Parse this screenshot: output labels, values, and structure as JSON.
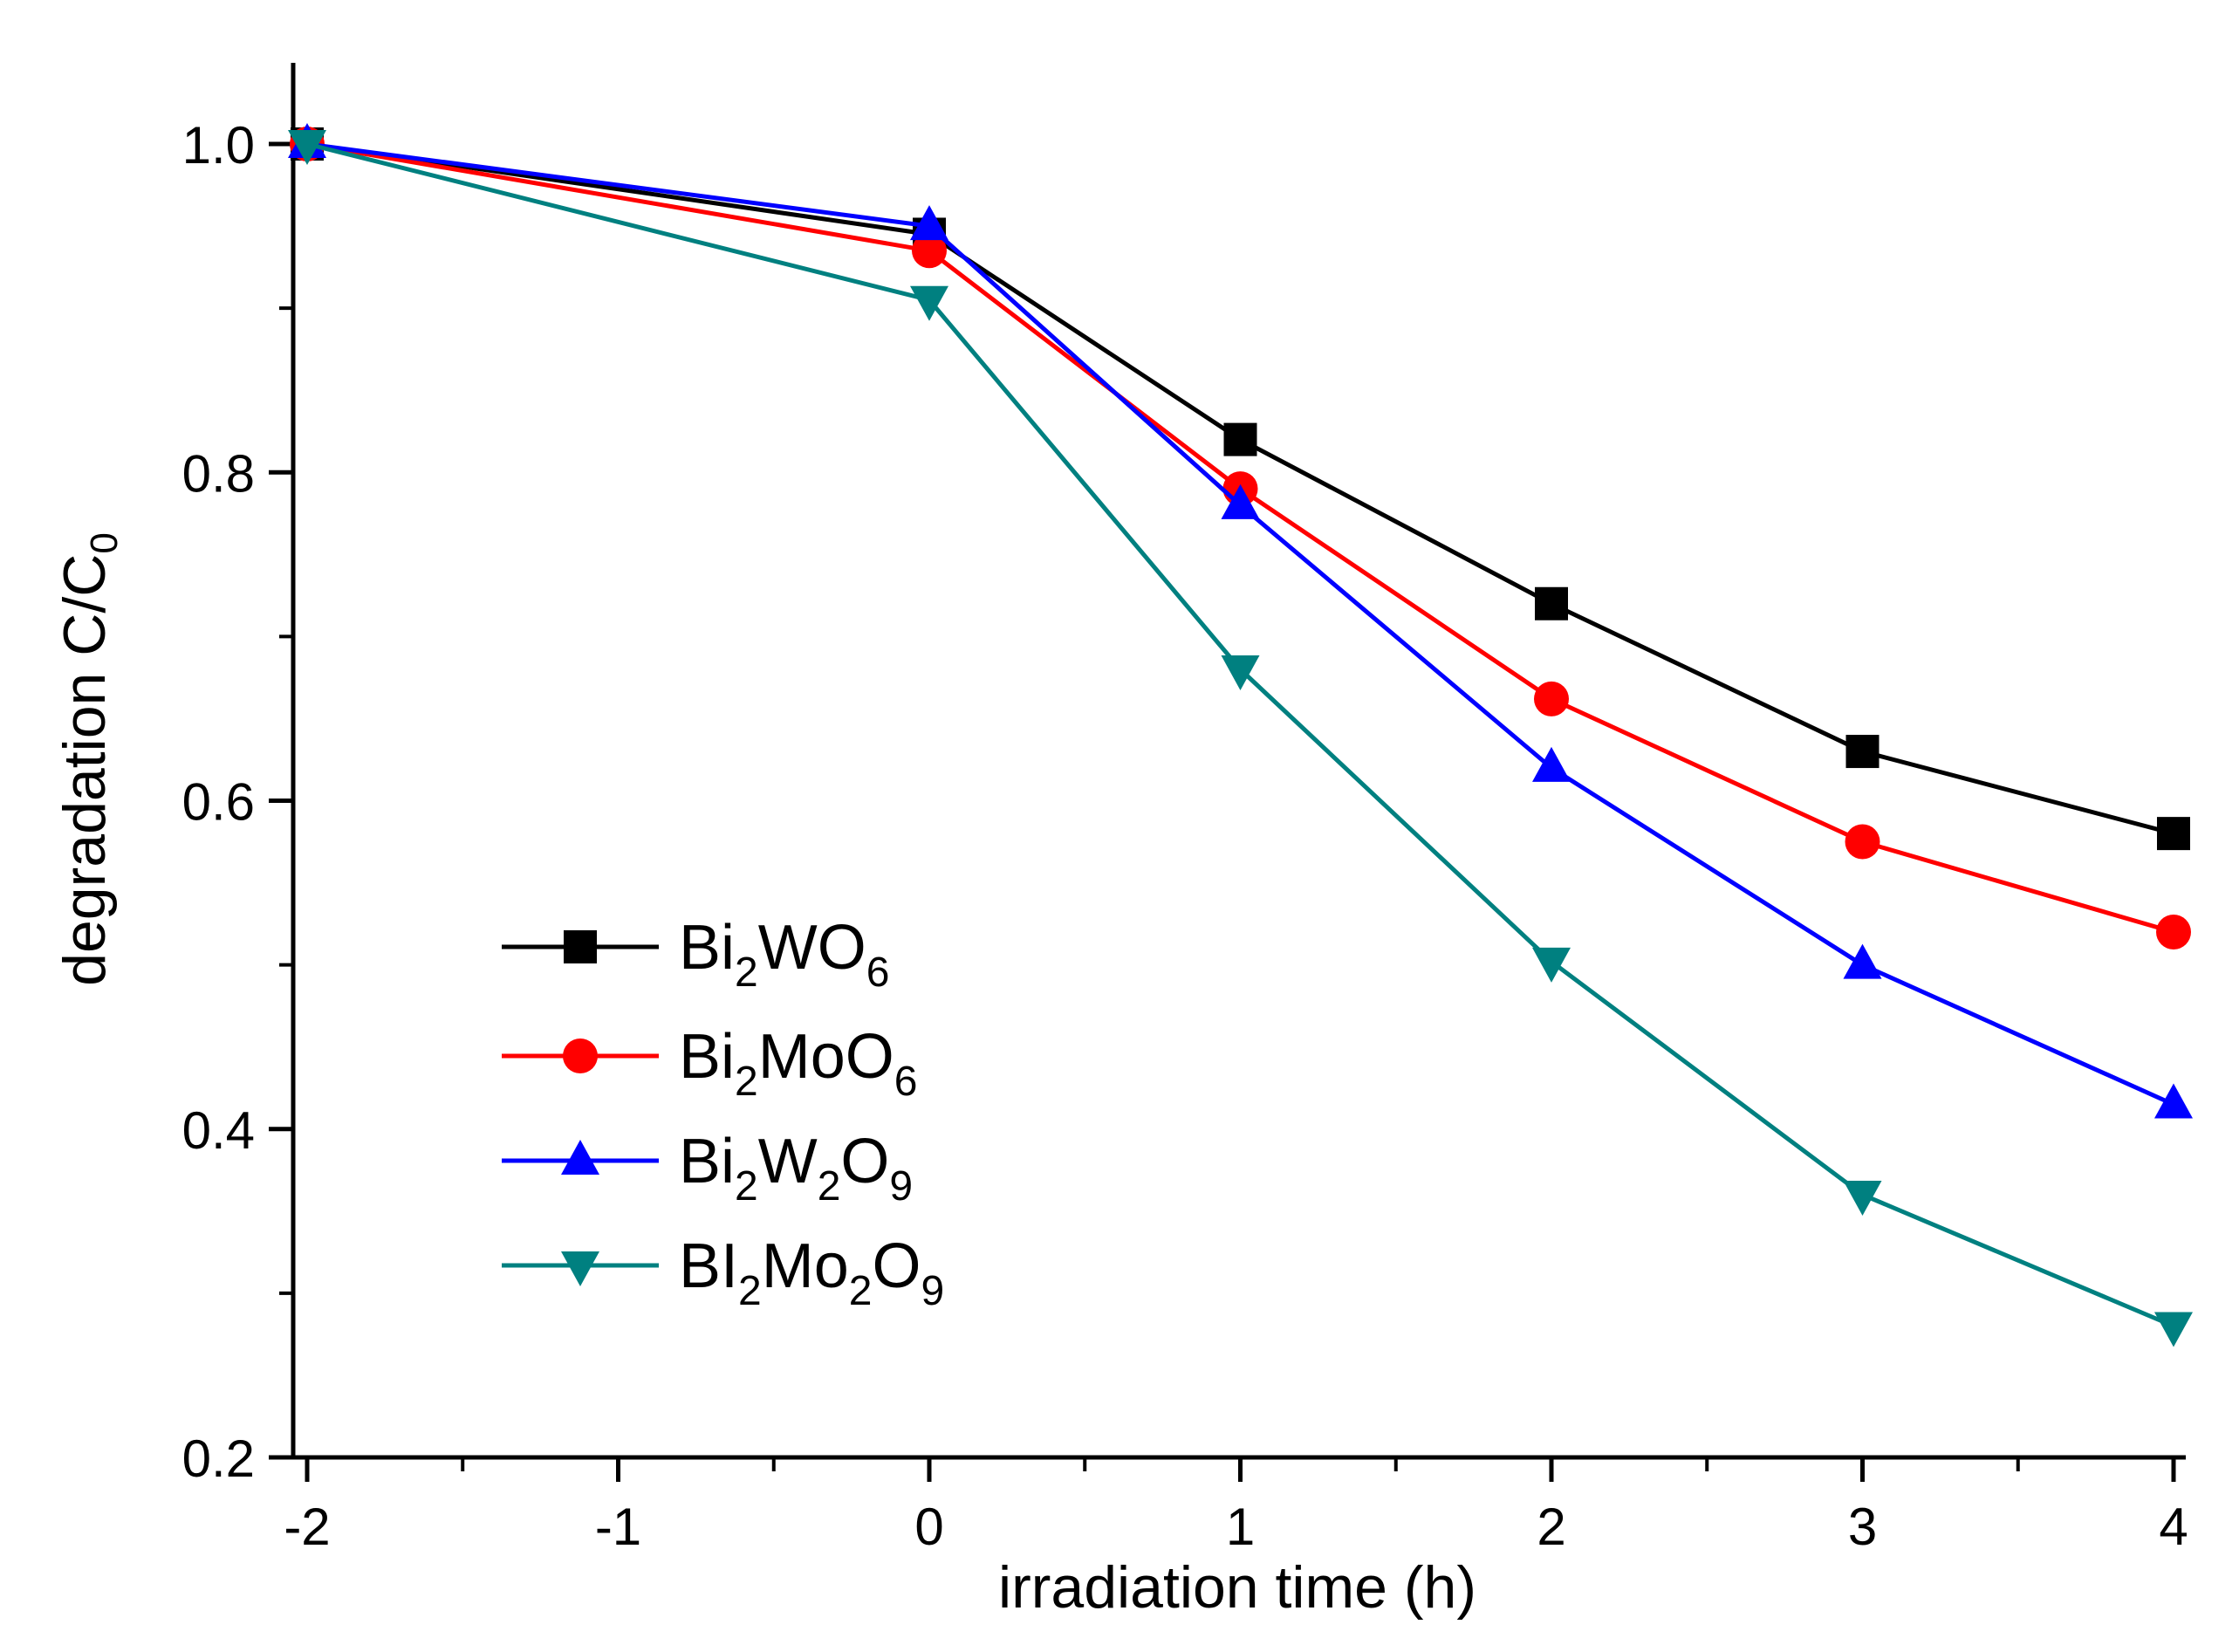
{
  "chart_data": {
    "type": "line",
    "xlabel": "irradiation time (h)",
    "ylabel": {
      "text": "degradation C/C",
      "subscript": "0"
    },
    "xlim": [
      -2,
      4
    ],
    "ylim": [
      0.2,
      1.05
    ],
    "x_ticks": [
      -2,
      -1,
      0,
      1,
      2,
      3,
      4
    ],
    "x_tick_labels": [
      "-2",
      "-1",
      "0",
      "1",
      "2",
      "3",
      "4"
    ],
    "y_ticks": [
      0.2,
      0.4,
      0.6,
      0.8,
      1.0
    ],
    "y_tick_labels": [
      "0.2",
      "0.4",
      "0.6",
      "0.8",
      "1.0"
    ],
    "grid": false,
    "legend_position": "lower-left",
    "x": [
      -2,
      0,
      1,
      2,
      3,
      4
    ],
    "series": [
      {
        "name": "Bi2WO6",
        "label_parts": [
          [
            "Bi",
            "n"
          ],
          [
            "2",
            "sub"
          ],
          [
            "WO",
            "n"
          ],
          [
            "6",
            "sub"
          ]
        ],
        "color": "#000000",
        "marker": "square",
        "values": [
          1.0,
          0.945,
          0.82,
          0.72,
          0.63,
          0.58
        ]
      },
      {
        "name": "Bi2MoO6",
        "label_parts": [
          [
            "Bi",
            "n"
          ],
          [
            "2",
            "sub"
          ],
          [
            "MoO",
            "n"
          ],
          [
            "6",
            "sub"
          ]
        ],
        "color": "#ff0000",
        "marker": "circle",
        "values": [
          1.0,
          0.935,
          0.79,
          0.662,
          0.575,
          0.52
        ]
      },
      {
        "name": "Bi2W2O9",
        "label_parts": [
          [
            "Bi",
            "n"
          ],
          [
            "2",
            "sub"
          ],
          [
            "W",
            "n"
          ],
          [
            "2",
            "sub"
          ],
          [
            "O",
            "n"
          ],
          [
            "9",
            "sub"
          ]
        ],
        "color": "#0000ff",
        "marker": "triangle-up",
        "values": [
          1.0,
          0.95,
          0.78,
          0.62,
          0.5,
          0.415
        ]
      },
      {
        "name": "BI2Mo2O9",
        "label_parts": [
          [
            "BI",
            "n"
          ],
          [
            "2",
            "sub"
          ],
          [
            "Mo",
            "n"
          ],
          [
            "2",
            "sub"
          ],
          [
            "O",
            "n"
          ],
          [
            "9",
            "sub"
          ]
        ],
        "color": "#008080",
        "marker": "triangle-down",
        "values": [
          1.0,
          0.905,
          0.68,
          0.502,
          0.36,
          0.28
        ]
      }
    ]
  }
}
